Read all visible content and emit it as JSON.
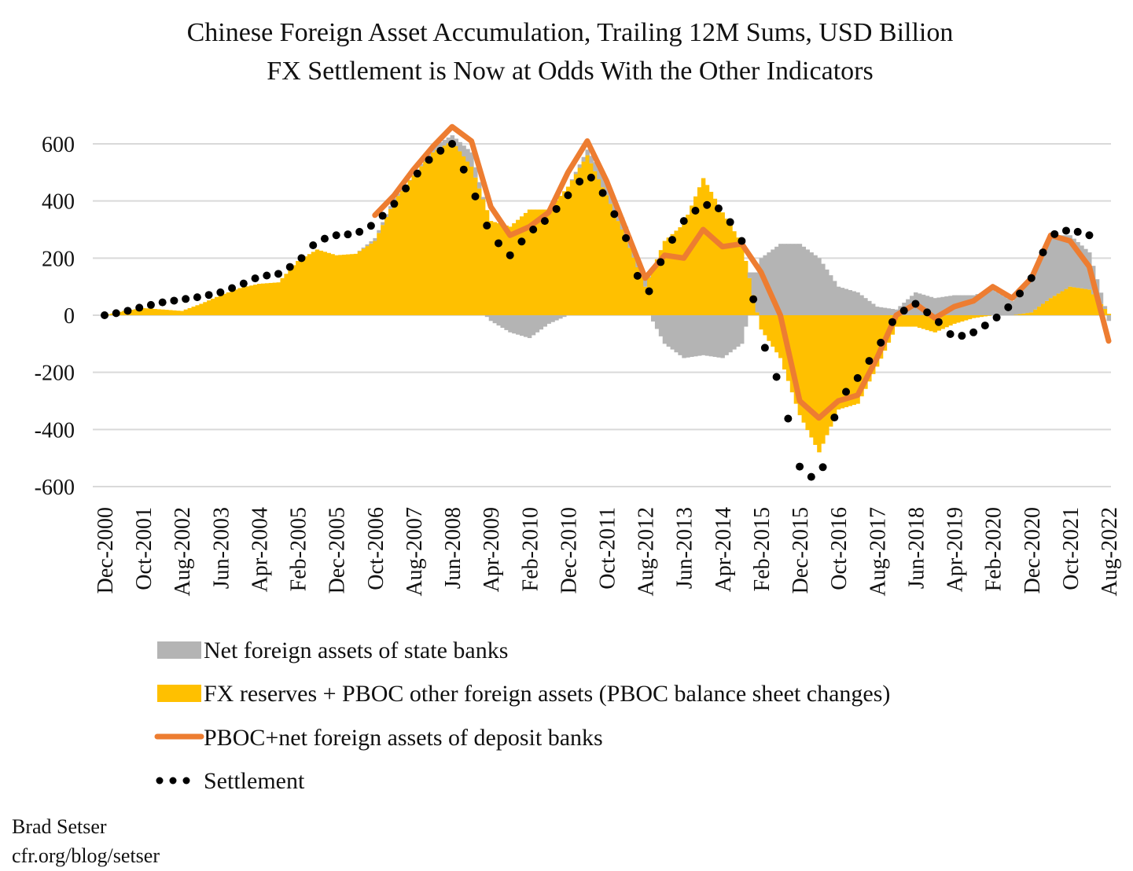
{
  "chart_data": {
    "type": "bar+line",
    "title": "Chinese Foreign Asset Accumulation, Trailing 12M Sums, USD Billion",
    "subtitle": "FX Settlement is Now at Odds With the Other Indicators",
    "xlabel": "",
    "ylabel": "",
    "ylim": [
      -600,
      600
    ],
    "yticks": [
      600,
      400,
      200,
      0,
      -200,
      -400,
      -600
    ],
    "ytick_labels": [
      "600",
      "400",
      "200",
      "0",
      "-200",
      "-400",
      "-600"
    ],
    "grid": true,
    "legend_placement": "bottom",
    "x_tick_labels": [
      "Dec-2000",
      "Oct-2001",
      "Aug-2002",
      "Jun-2003",
      "Apr-2004",
      "Feb-2005",
      "Dec-2005",
      "Oct-2006",
      "Aug-2007",
      "Jun-2008",
      "Apr-2009",
      "Feb-2010",
      "Dec-2010",
      "Oct-2011",
      "Aug-2012",
      "Jun-2013",
      "Apr-2014",
      "Feb-2015",
      "Dec-2015",
      "Oct-2016",
      "Aug-2017",
      "Jun-2018",
      "Apr-2019",
      "Feb-2020",
      "Dec-2020",
      "Oct-2021",
      "Aug-2022"
    ],
    "x": [
      "Dec-2000",
      "May-2001",
      "Oct-2001",
      "Mar-2002",
      "Aug-2002",
      "Jan-2003",
      "Jun-2003",
      "Nov-2003",
      "Apr-2004",
      "Sep-2004",
      "Feb-2005",
      "Jul-2005",
      "Dec-2005",
      "May-2006",
      "Oct-2006",
      "Mar-2007",
      "Aug-2007",
      "Jan-2008",
      "Jun-2008",
      "Nov-2008",
      "Apr-2009",
      "Sep-2009",
      "Feb-2010",
      "Jul-2010",
      "Dec-2010",
      "May-2011",
      "Oct-2011",
      "Mar-2012",
      "Aug-2012",
      "Jan-2013",
      "Jun-2013",
      "Nov-2013",
      "Apr-2014",
      "Sep-2014",
      "Feb-2015",
      "Jul-2015",
      "Dec-2015",
      "May-2016",
      "Oct-2016",
      "Mar-2017",
      "Aug-2017",
      "Jan-2018",
      "Jun-2018",
      "Nov-2018",
      "Apr-2019",
      "Sep-2019",
      "Feb-2020",
      "Jul-2020",
      "Dec-2020",
      "May-2021",
      "Oct-2021",
      "Mar-2022",
      "Aug-2022"
    ],
    "series": [
      {
        "name": "Net foreign assets of state banks",
        "type": "stacked-bar",
        "color": "#B4B4B4",
        "values": [
          0,
          0,
          0,
          0,
          0,
          0,
          0,
          0,
          0,
          0,
          0,
          0,
          0,
          0,
          10,
          10,
          0,
          20,
          20,
          50,
          -20,
          -60,
          -80,
          -30,
          0,
          20,
          50,
          40,
          30,
          -100,
          -150,
          -140,
          -150,
          -100,
          200,
          250,
          250,
          200,
          100,
          80,
          30,
          20,
          80,
          60,
          70,
          70,
          90,
          50,
          120,
          220,
          180,
          130,
          -20
        ]
      },
      {
        "name": "FX reserves + PBOC other foreign assets (PBOC balance sheet changes)",
        "type": "stacked-bar",
        "color": "#FFC000",
        "values": [
          0,
          15,
          25,
          20,
          15,
          40,
          70,
          95,
          110,
          115,
          190,
          230,
          210,
          215,
          260,
          400,
          490,
          570,
          610,
          520,
          330,
          310,
          370,
          370,
          450,
          560,
          420,
          270,
          100,
          260,
          320,
          480,
          360,
          250,
          -50,
          -150,
          -350,
          -480,
          -330,
          -310,
          -180,
          -40,
          -40,
          -60,
          -30,
          -10,
          0,
          0,
          10,
          60,
          100,
          90,
          5
        ]
      },
      {
        "name": "PBOC+net foreign assets of deposit banks",
        "type": "line",
        "color": "#ED7D31",
        "values": [
          null,
          null,
          null,
          null,
          null,
          null,
          null,
          null,
          null,
          null,
          null,
          null,
          null,
          null,
          350,
          420,
          510,
          590,
          660,
          610,
          380,
          280,
          310,
          360,
          500,
          610,
          470,
          300,
          130,
          210,
          200,
          300,
          240,
          250,
          150,
          0,
          -300,
          -360,
          -300,
          -280,
          -150,
          0,
          40,
          -10,
          30,
          50,
          100,
          60,
          130,
          280,
          260,
          170,
          -90
        ]
      },
      {
        "name": "Settlement",
        "type": "dotted-line",
        "color": "#000000",
        "values": [
          0,
          12,
          30,
          45,
          55,
          65,
          80,
          105,
          135,
          145,
          185,
          260,
          280,
          285,
          320,
          390,
          480,
          560,
          600,
          450,
          280,
          210,
          290,
          340,
          420,
          500,
          410,
          270,
          50,
          220,
          330,
          390,
          370,
          260,
          -80,
          -250,
          -530,
          -590,
          -300,
          -220,
          -120,
          0,
          40,
          -10,
          -80,
          -60,
          -20,
          40,
          130,
          280,
          300,
          280,
          null
        ]
      }
    ]
  },
  "source": {
    "author": "Brad Setser",
    "url": "cfr.org/blog/setser"
  }
}
